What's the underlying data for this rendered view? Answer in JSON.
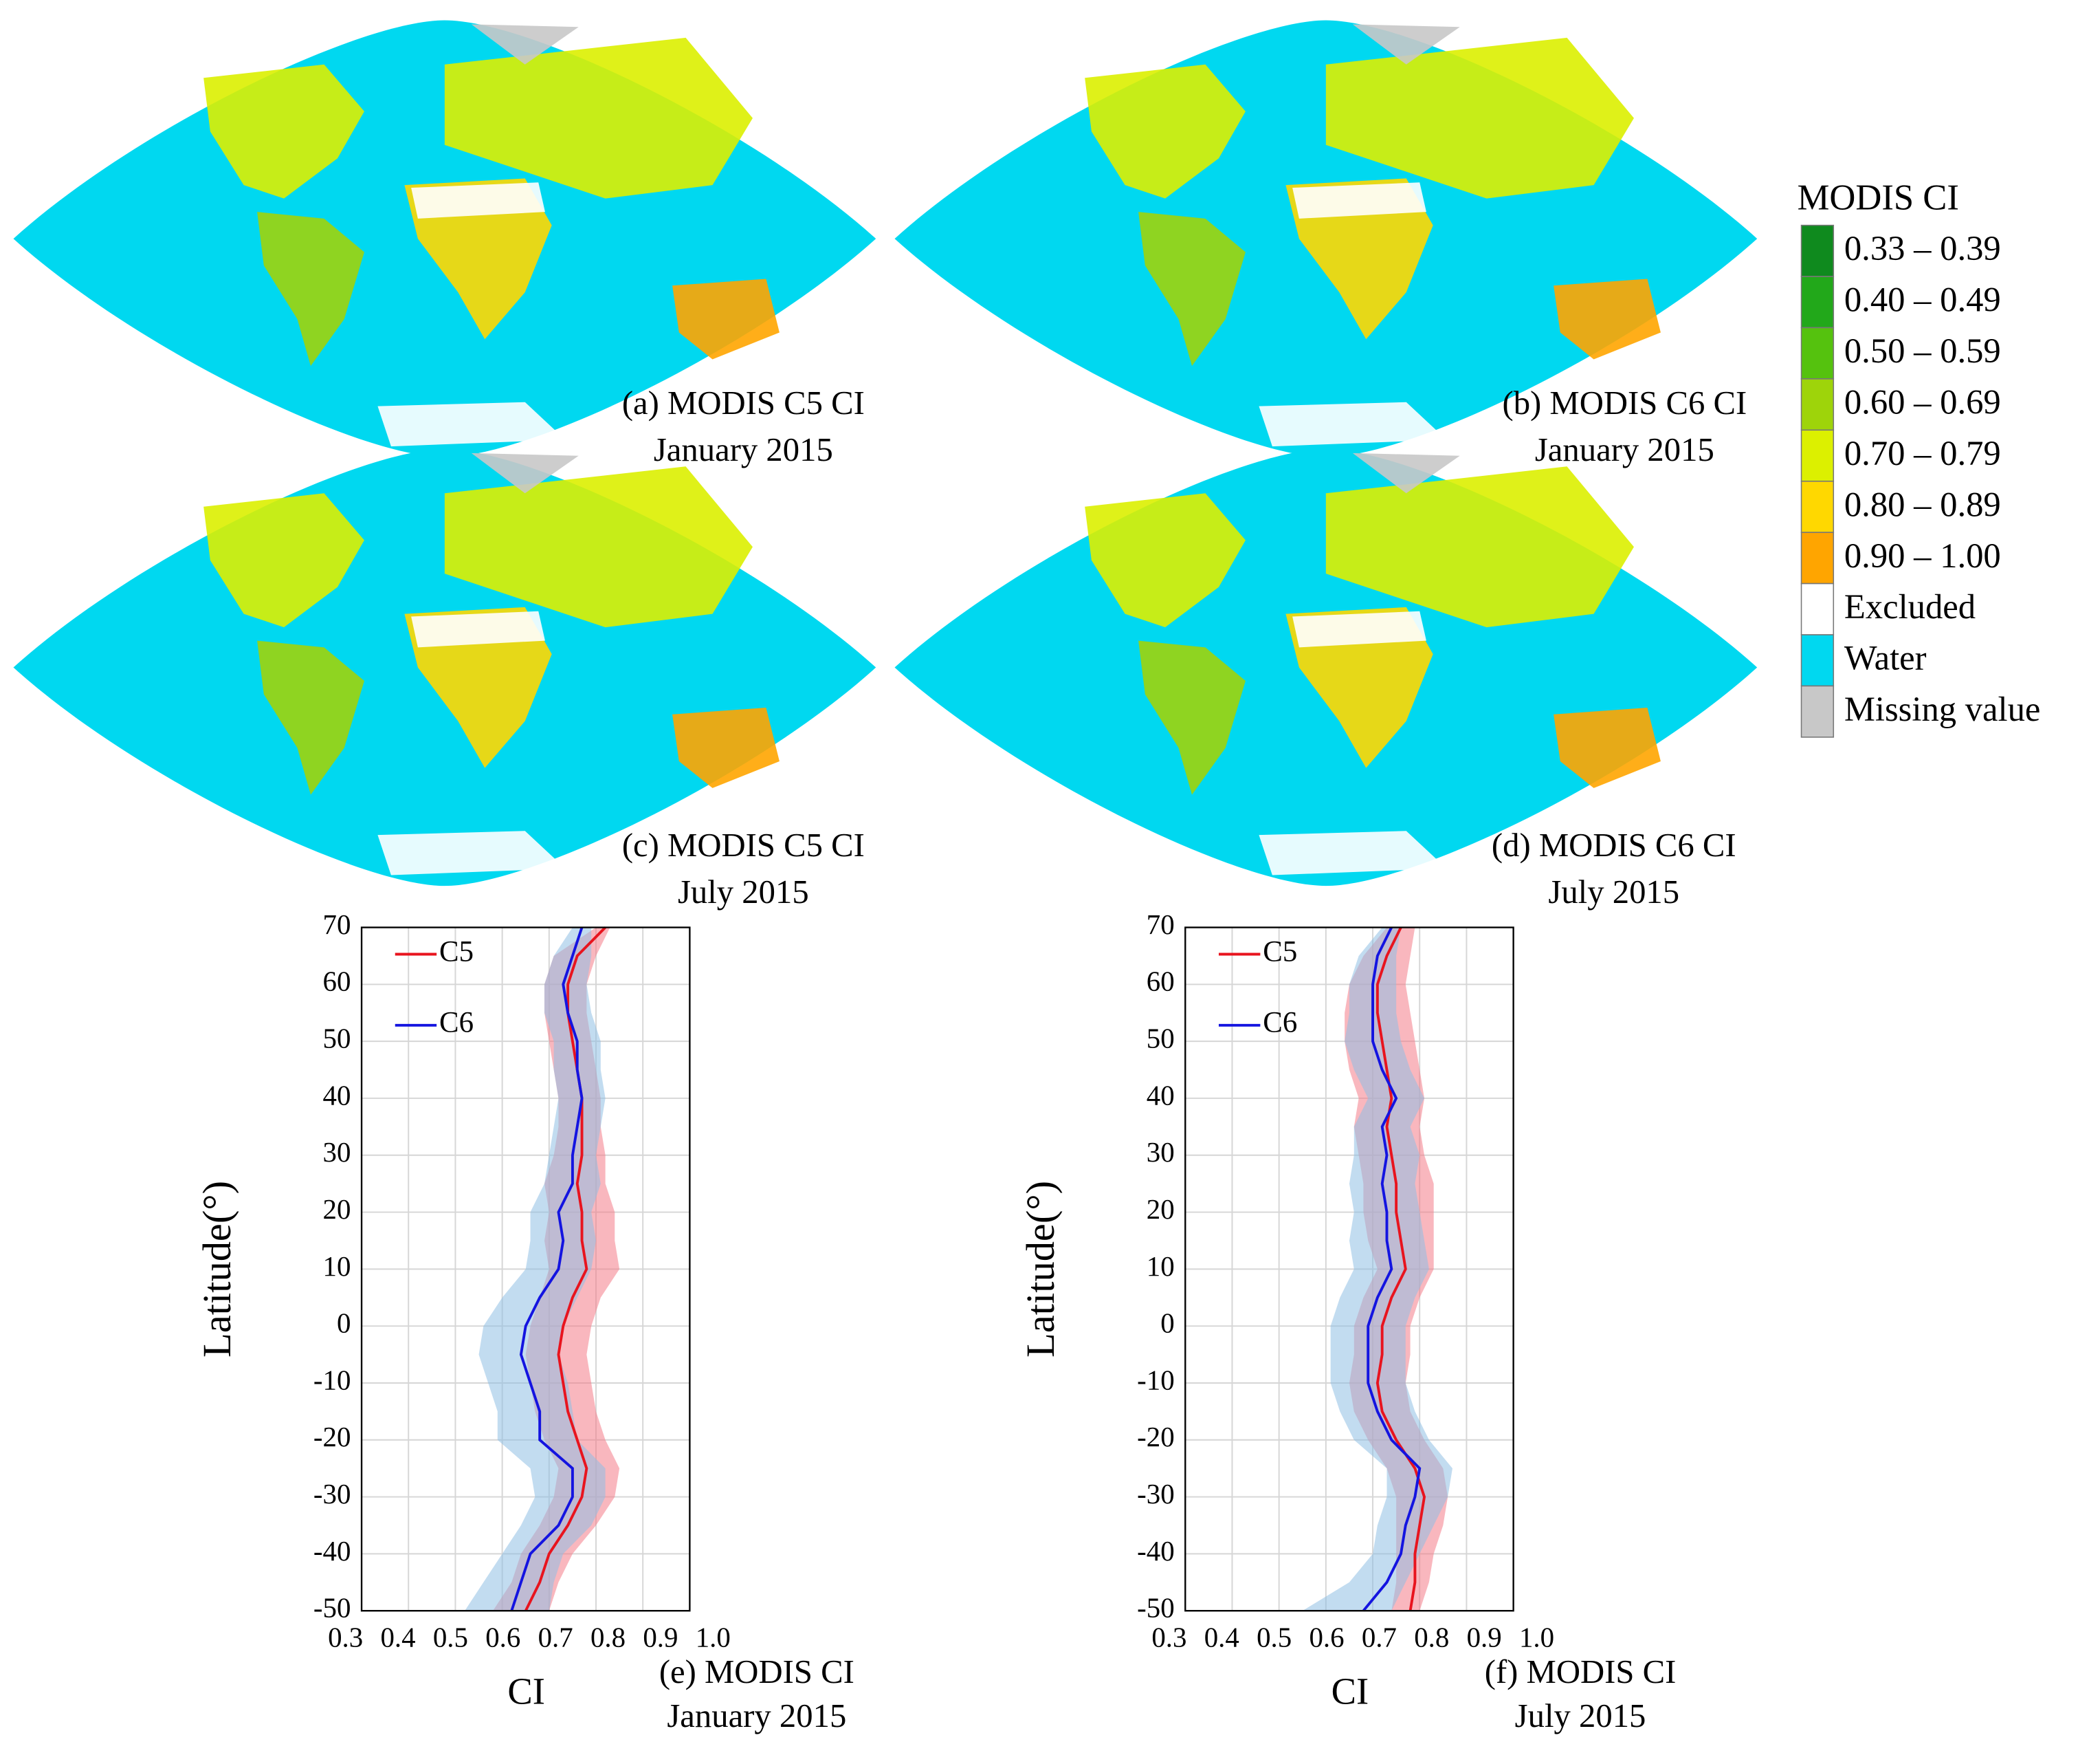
{
  "maps": [
    {
      "caption": "(a) MODIS C5 CI",
      "date": "January 2015"
    },
    {
      "caption": "(b) MODIS C6 CI",
      "date": "January 2015"
    },
    {
      "caption": "(c) MODIS C5 CI",
      "date": "July 2015"
    },
    {
      "caption": "(d) MODIS C6 CI",
      "date": "July 2015"
    }
  ],
  "legend": {
    "title": "MODIS CI",
    "items": [
      {
        "label": "0.33 – 0.39",
        "color": "#0f8a1e"
      },
      {
        "label": "0.40 – 0.49",
        "color": "#22a81a"
      },
      {
        "label": "0.50 – 0.59",
        "color": "#55c20e"
      },
      {
        "label": "0.60 – 0.69",
        "color": "#9ed40a"
      },
      {
        "label": "0.70 – 0.79",
        "color": "#dcf000"
      },
      {
        "label": "0.80 – 0.89",
        "color": "#ffd800"
      },
      {
        "label": "0.90 – 1.00",
        "color": "#ffa500"
      },
      {
        "label": "Excluded",
        "color": "#ffffff"
      },
      {
        "label": "Water",
        "color": "#00d8f0"
      },
      {
        "label": "Missing value",
        "color": "#c8c8c8"
      }
    ]
  },
  "chart_data": [
    {
      "type": "line",
      "orientation": "horizontal",
      "caption": "(e) MODIS CI",
      "date": "January 2015",
      "x_label": "Latitude(°)",
      "y_label": "CI",
      "x": [
        -50,
        -45,
        -40,
        -35,
        -30,
        -25,
        -20,
        -15,
        -10,
        -5,
        0,
        5,
        10,
        15,
        20,
        25,
        30,
        35,
        40,
        45,
        50,
        55,
        60,
        65,
        70
      ],
      "xlim": [
        -50,
        70
      ],
      "xticks": [
        -50,
        -40,
        -30,
        -20,
        -10,
        0,
        10,
        20,
        30,
        40,
        50,
        60,
        70
      ],
      "ylim": [
        0.3,
        1.0
      ],
      "yticks": [
        0.3,
        0.4,
        0.5,
        0.6,
        0.7,
        0.8,
        0.9,
        {
          "value": 1,
          "label": "1.0"
        }
      ],
      "grid": true,
      "series": [
        {
          "name": "C5",
          "color": "#e8141e",
          "band_color": "#f47c88",
          "values": [
            0.65,
            0.68,
            0.7,
            0.74,
            0.77,
            0.78,
            0.76,
            0.74,
            0.73,
            0.72,
            0.73,
            0.75,
            0.78,
            0.77,
            0.77,
            0.76,
            0.77,
            0.77,
            0.77,
            0.76,
            0.75,
            0.74,
            0.74,
            0.76,
            0.82
          ],
          "lower": [
            0.58,
            0.62,
            0.64,
            0.68,
            0.71,
            0.72,
            0.69,
            0.67,
            0.66,
            0.65,
            0.66,
            0.68,
            0.7,
            0.69,
            0.7,
            0.69,
            0.71,
            0.72,
            0.72,
            0.71,
            0.7,
            0.69,
            0.69,
            0.71,
            0.8
          ],
          "upper": [
            0.7,
            0.72,
            0.75,
            0.8,
            0.84,
            0.85,
            0.82,
            0.8,
            0.79,
            0.78,
            0.79,
            0.81,
            0.85,
            0.84,
            0.84,
            0.82,
            0.82,
            0.81,
            0.81,
            0.8,
            0.79,
            0.78,
            0.78,
            0.8,
            0.83
          ]
        },
        {
          "name": "C6",
          "color": "#1414e0",
          "band_color": "#8fbfe4",
          "values": [
            0.62,
            0.64,
            0.66,
            0.72,
            0.75,
            0.75,
            0.68,
            0.68,
            0.66,
            0.64,
            0.65,
            0.68,
            0.72,
            0.73,
            0.72,
            0.75,
            0.75,
            0.76,
            0.77,
            0.76,
            0.76,
            0.74,
            0.73,
            0.75,
            0.77
          ],
          "lower": [
            0.52,
            0.56,
            0.6,
            0.64,
            0.67,
            0.66,
            0.59,
            0.59,
            0.57,
            0.55,
            0.56,
            0.6,
            0.65,
            0.66,
            0.66,
            0.69,
            0.7,
            0.71,
            0.72,
            0.71,
            0.71,
            0.69,
            0.69,
            0.71,
            0.75
          ],
          "upper": [
            0.7,
            0.71,
            0.73,
            0.79,
            0.82,
            0.82,
            0.76,
            0.75,
            0.74,
            0.72,
            0.73,
            0.76,
            0.79,
            0.8,
            0.79,
            0.81,
            0.8,
            0.81,
            0.82,
            0.81,
            0.81,
            0.79,
            0.78,
            0.79,
            0.79
          ]
        }
      ]
    },
    {
      "type": "line",
      "orientation": "horizontal",
      "caption": "(f) MODIS CI",
      "date": "July 2015",
      "x_label": "Latitude(°)",
      "y_label": "CI",
      "x": [
        -50,
        -45,
        -40,
        -35,
        -30,
        -25,
        -20,
        -15,
        -10,
        -5,
        0,
        5,
        10,
        15,
        20,
        25,
        30,
        35,
        40,
        45,
        50,
        55,
        60,
        65,
        70
      ],
      "xlim": [
        -50,
        70
      ],
      "xticks": [
        -50,
        -40,
        -30,
        -20,
        -10,
        0,
        10,
        20,
        30,
        40,
        50,
        60,
        70
      ],
      "ylim": [
        0.3,
        1.0
      ],
      "yticks": [
        0.3,
        0.4,
        0.5,
        0.6,
        0.7,
        0.8,
        0.9,
        {
          "value": 1,
          "label": "1.0"
        }
      ],
      "grid": true,
      "series": [
        {
          "name": "C5",
          "color": "#e8141e",
          "band_color": "#f47c88",
          "values": [
            0.78,
            0.79,
            0.79,
            0.8,
            0.81,
            0.79,
            0.75,
            0.72,
            0.71,
            0.72,
            0.72,
            0.74,
            0.77,
            0.76,
            0.75,
            0.75,
            0.74,
            0.73,
            0.74,
            0.73,
            0.72,
            0.71,
            0.71,
            0.73,
            0.76
          ],
          "lower": [
            0.74,
            0.75,
            0.75,
            0.75,
            0.75,
            0.73,
            0.69,
            0.66,
            0.65,
            0.66,
            0.66,
            0.68,
            0.71,
            0.69,
            0.68,
            0.68,
            0.67,
            0.66,
            0.67,
            0.65,
            0.64,
            0.64,
            0.65,
            0.68,
            0.73
          ],
          "upper": [
            0.8,
            0.82,
            0.83,
            0.85,
            0.86,
            0.85,
            0.81,
            0.78,
            0.77,
            0.78,
            0.78,
            0.8,
            0.83,
            0.83,
            0.83,
            0.83,
            0.81,
            0.8,
            0.81,
            0.8,
            0.79,
            0.78,
            0.77,
            0.78,
            0.79
          ]
        },
        {
          "name": "C6",
          "color": "#1414e0",
          "band_color": "#8fbfe4",
          "values": [
            0.68,
            0.73,
            0.76,
            0.77,
            0.79,
            0.8,
            0.74,
            0.71,
            0.69,
            0.69,
            0.69,
            0.71,
            0.74,
            0.73,
            0.73,
            0.72,
            0.73,
            0.72,
            0.75,
            0.72,
            0.7,
            0.7,
            0.7,
            0.71,
            0.74
          ],
          "lower": [
            0.55,
            0.65,
            0.7,
            0.71,
            0.73,
            0.73,
            0.66,
            0.63,
            0.61,
            0.61,
            0.61,
            0.63,
            0.66,
            0.65,
            0.66,
            0.65,
            0.66,
            0.66,
            0.69,
            0.66,
            0.64,
            0.65,
            0.65,
            0.67,
            0.72
          ],
          "upper": [
            0.74,
            0.77,
            0.8,
            0.83,
            0.86,
            0.87,
            0.82,
            0.79,
            0.77,
            0.77,
            0.77,
            0.79,
            0.82,
            0.81,
            0.8,
            0.79,
            0.8,
            0.78,
            0.81,
            0.78,
            0.76,
            0.75,
            0.75,
            0.75,
            0.76
          ]
        }
      ]
    }
  ]
}
